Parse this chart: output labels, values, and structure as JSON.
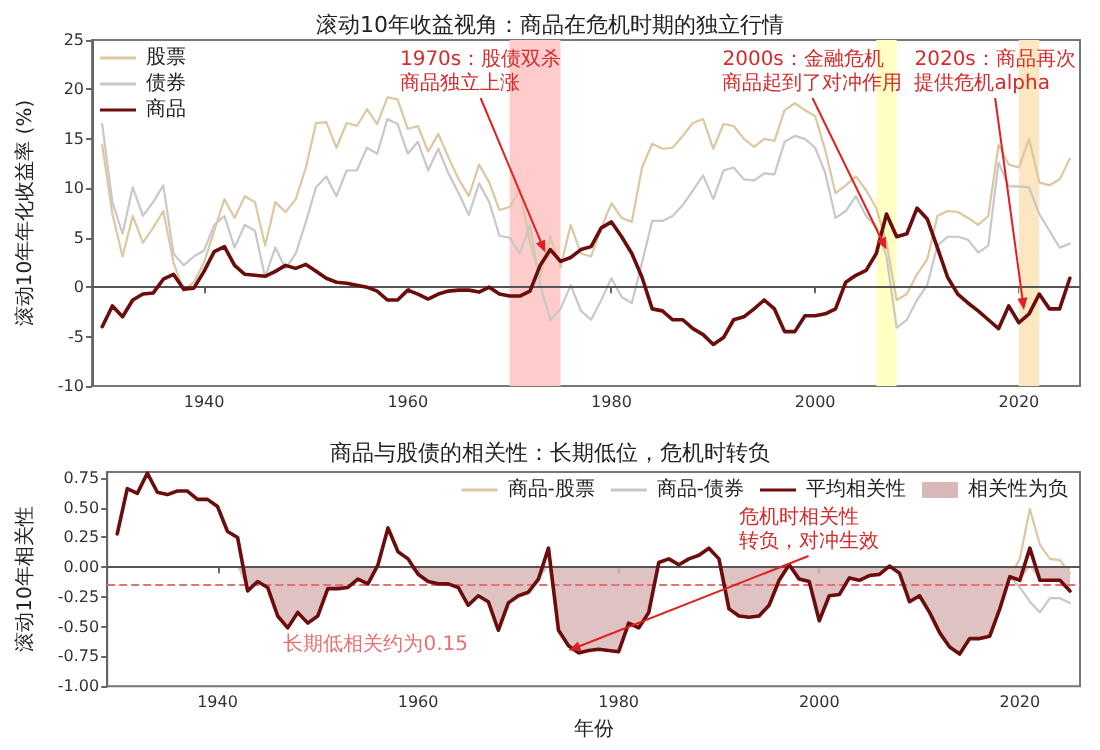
{
  "chart_data": [
    {
      "type": "line",
      "title": "滚动10年收益视角：商品在危机时期的独立行情",
      "ylabel": "滚动10年年化收益率 (%)",
      "x": [
        1930,
        1931,
        1932,
        1933,
        1934,
        1935,
        1936,
        1937,
        1938,
        1939,
        1940,
        1941,
        1942,
        1943,
        1944,
        1945,
        1946,
        1947,
        1948,
        1949,
        1950,
        1951,
        1952,
        1953,
        1954,
        1955,
        1956,
        1957,
        1958,
        1959,
        1960,
        1961,
        1962,
        1963,
        1964,
        1965,
        1966,
        1967,
        1968,
        1969,
        1970,
        1971,
        1972,
        1973,
        1974,
        1975,
        1976,
        1977,
        1978,
        1979,
        1980,
        1981,
        1982,
        1983,
        1984,
        1985,
        1986,
        1987,
        1988,
        1989,
        1990,
        1991,
        1992,
        1993,
        1994,
        1995,
        1996,
        1997,
        1998,
        1999,
        2000,
        2001,
        2002,
        2003,
        2004,
        2005,
        2006,
        2007,
        2008,
        2009,
        2010,
        2011,
        2012,
        2013,
        2014,
        2015,
        2016,
        2017,
        2018,
        2019,
        2020,
        2021,
        2022,
        2023,
        2024,
        2025
      ],
      "xlim": [
        1929,
        2026
      ],
      "xticks": [
        1940,
        1960,
        1980,
        2000,
        2020
      ],
      "ylim": [
        -10,
        25
      ],
      "yticks": [
        -10,
        -5,
        0,
        5,
        10,
        15,
        20,
        25
      ],
      "legend": "top left",
      "marker": "none",
      "series": [
        {
          "name": "股票",
          "type": "line",
          "color": "#dcc7a1",
          "values": [
            14.4,
            7.4,
            3.1,
            7.2,
            4.5,
            6.0,
            7.7,
            2.5,
            -0.4,
            0.5,
            2.5,
            5.7,
            8.9,
            7.0,
            9.2,
            8.6,
            4.2,
            8.6,
            7.6,
            8.9,
            12.1,
            16.6,
            16.7,
            14.1,
            16.6,
            16.3,
            18.0,
            16.5,
            19.2,
            19.0,
            16.0,
            16.3,
            13.7,
            15.5,
            13.1,
            10.9,
            9.2,
            12.4,
            10.6,
            7.8,
            8.1,
            9.8,
            4.5,
            1.0,
            5.1,
            2.0,
            6.3,
            3.4,
            3.1,
            6.0,
            8.5,
            7.0,
            6.6,
            12.1,
            14.5,
            14.0,
            14.1,
            15.3,
            16.6,
            17.0,
            14.0,
            16.5,
            16.3,
            15.0,
            14.2,
            15.0,
            14.8,
            17.9,
            18.6,
            17.9,
            17.3,
            13.8,
            9.5,
            10.3,
            11.2,
            9.8,
            8.0,
            4.5,
            -1.3,
            -0.7,
            1.3,
            2.8,
            7.2,
            7.7,
            7.6,
            7.0,
            6.3,
            7.2,
            14.4,
            12.4,
            12.1,
            15.0,
            10.6,
            10.3,
            10.9,
            13.0
          ]
        },
        {
          "name": "债券",
          "type": "line",
          "color": "#c8c8c8",
          "values": [
            16.5,
            8.6,
            5.4,
            10.1,
            7.2,
            8.6,
            10.3,
            3.4,
            2.2,
            3.1,
            3.7,
            6.3,
            7.2,
            4.0,
            6.3,
            5.7,
            1.0,
            4.0,
            1.9,
            3.4,
            6.6,
            10.1,
            11.2,
            9.2,
            11.8,
            11.8,
            14.1,
            13.5,
            17.0,
            16.5,
            13.5,
            14.7,
            11.8,
            14.0,
            11.5,
            9.5,
            7.3,
            10.5,
            8.6,
            5.2,
            5.0,
            3.4,
            6.3,
            0.2,
            -3.3,
            -2.2,
            0.2,
            -2.4,
            -3.3,
            -1.3,
            0.9,
            -1.0,
            -1.6,
            2.5,
            6.7,
            6.7,
            7.2,
            8.3,
            9.8,
            11.3,
            8.9,
            11.8,
            12.1,
            10.9,
            10.8,
            11.5,
            11.4,
            14.7,
            15.3,
            15.0,
            14.1,
            11.5,
            7.0,
            7.7,
            9.2,
            7.2,
            6.0,
            3.1,
            -4.1,
            -3.3,
            -1.3,
            0.2,
            4.2,
            5.1,
            5.1,
            4.8,
            3.5,
            4.2,
            12.6,
            10.2,
            10.2,
            10.1,
            7.4,
            5.7,
            4.0,
            4.4
          ]
        },
        {
          "name": "商品",
          "type": "line",
          "color": "#6b0d0d",
          "values": [
            -4.0,
            -1.9,
            -3.0,
            -1.3,
            -0.7,
            -0.6,
            0.8,
            1.3,
            -0.2,
            -0.1,
            1.6,
            3.6,
            4.1,
            2.2,
            1.3,
            1.2,
            1.1,
            1.6,
            2.2,
            1.9,
            2.3,
            1.6,
            0.9,
            0.5,
            0.4,
            0.2,
            0.0,
            -0.4,
            -1.3,
            -1.3,
            -0.3,
            -0.7,
            -1.2,
            -0.7,
            -0.4,
            -0.3,
            -0.3,
            -0.5,
            0.0,
            -0.7,
            -0.9,
            -0.9,
            -0.4,
            2.2,
            3.8,
            2.6,
            3.0,
            3.8,
            4.1,
            6.0,
            6.6,
            5.1,
            3.4,
            1.0,
            -2.2,
            -2.4,
            -3.3,
            -3.3,
            -4.2,
            -4.8,
            -5.8,
            -5.1,
            -3.3,
            -3.0,
            -2.2,
            -1.3,
            -2.2,
            -4.5,
            -4.5,
            -2.9,
            -2.9,
            -2.7,
            -2.2,
            0.5,
            1.2,
            1.7,
            3.4,
            7.4,
            5.1,
            5.4,
            8.0,
            6.9,
            4.0,
            1.0,
            -0.7,
            -1.6,
            -2.4,
            -3.3,
            -4.2,
            -1.9,
            -3.6,
            -2.7,
            -0.7,
            -2.2,
            -2.2,
            0.9
          ]
        }
      ],
      "bands": [
        {
          "axis": "x",
          "from": 1970,
          "to": 1975,
          "color": "#ffcccc"
        },
        {
          "axis": "x",
          "from": 2006,
          "to": 2008,
          "color": "#ffffc4"
        },
        {
          "axis": "x",
          "from": 2020,
          "to": 2022,
          "color": "#fde6c2"
        }
      ],
      "ref_lines": [
        {
          "axis": "y",
          "value": 0,
          "color": "#555555"
        }
      ],
      "annotations": [
        {
          "text": "1970s：股债双杀商品独立上涨",
          "x": 1973.5,
          "y": 3.5
        },
        {
          "text": "2000s：金融危机商品起到了对冲作用",
          "x": 2007,
          "y": 3.8
        },
        {
          "text": "2020s：商品再次提供危机alpha",
          "x": 2020.5,
          "y": -2.3
        }
      ]
    },
    {
      "type": "line",
      "title": "商品与股债的相关性：长期低位，危机时转负",
      "ylabel": "滚动10年相关性",
      "xlabel": "年份",
      "x": [
        1930,
        1931,
        1932,
        1933,
        1934,
        1935,
        1936,
        1937,
        1938,
        1939,
        1940,
        1941,
        1942,
        1943,
        1944,
        1945,
        1946,
        1947,
        1948,
        1949,
        1950,
        1951,
        1952,
        1953,
        1954,
        1955,
        1956,
        1957,
        1958,
        1959,
        1960,
        1961,
        1962,
        1963,
        1964,
        1965,
        1966,
        1967,
        1968,
        1969,
        1970,
        1971,
        1972,
        1973,
        1974,
        1975,
        1976,
        1977,
        1978,
        1979,
        1980,
        1981,
        1982,
        1983,
        1984,
        1985,
        1986,
        1987,
        1988,
        1989,
        1990,
        1991,
        1992,
        1993,
        1994,
        1995,
        1996,
        1997,
        1998,
        1999,
        2000,
        2001,
        2002,
        2003,
        2004,
        2005,
        2006,
        2007,
        2008,
        2009,
        2010,
        2011,
        2012,
        2013,
        2014,
        2015,
        2016,
        2017,
        2018,
        2019,
        2020,
        2021,
        2022,
        2023,
        2024,
        2025
      ],
      "xlim": [
        1929,
        2026
      ],
      "xticks": [
        1940,
        1960,
        1980,
        2000,
        2020
      ],
      "ylim": [
        -1,
        0.8
      ],
      "yticks": [
        {
          "value": -1,
          "label": "-1.00"
        },
        -0.75,
        {
          "value": -0.5,
          "label": "-0.50"
        },
        -0.25,
        {
          "value": 0,
          "label": "0.00"
        },
        0.25,
        {
          "value": 0.5,
          "label": "0.50"
        },
        0.75
      ],
      "legend": "top right",
      "marker": "none",
      "series": [
        {
          "name": "商品-股票",
          "type": "line",
          "color": "#dcc7a1",
          "x": [
            2019,
            2020,
            2021,
            2022,
            2023,
            2024,
            2025
          ],
          "values": [
            -0.08,
            0.07,
            0.49,
            0.19,
            0.07,
            0.06,
            -0.05
          ]
        },
        {
          "name": "商品-债券",
          "type": "line",
          "color": "#c8c8c8",
          "x": [
            2019,
            2020,
            2021,
            2022,
            2023,
            2024,
            2025
          ],
          "values": [
            -0.08,
            -0.17,
            -0.29,
            -0.38,
            -0.26,
            -0.26,
            -0.3
          ]
        },
        {
          "name": "平均相关性",
          "type": "line",
          "color": "#6b0d0d",
          "values": [
            0.28,
            0.66,
            0.62,
            0.79,
            0.63,
            0.61,
            0.64,
            0.64,
            0.57,
            0.57,
            0.51,
            0.3,
            0.25,
            -0.2,
            -0.12,
            -0.17,
            -0.41,
            -0.51,
            -0.38,
            -0.47,
            -0.41,
            -0.18,
            -0.18,
            -0.17,
            -0.1,
            -0.14,
            0.02,
            0.33,
            0.13,
            0.07,
            -0.06,
            -0.12,
            -0.14,
            -0.14,
            -0.17,
            -0.32,
            -0.24,
            -0.29,
            -0.53,
            -0.3,
            -0.24,
            -0.21,
            -0.1,
            0.16,
            -0.53,
            -0.66,
            -0.72,
            -0.7,
            -0.69,
            -0.7,
            -0.71,
            -0.47,
            -0.51,
            -0.38,
            0.04,
            0.07,
            0.02,
            0.07,
            0.1,
            0.16,
            0.07,
            -0.35,
            -0.41,
            -0.42,
            -0.41,
            -0.32,
            -0.11,
            0.02,
            -0.1,
            -0.12,
            -0.45,
            -0.24,
            -0.23,
            -0.09,
            -0.11,
            -0.07,
            -0.06,
            0.01,
            -0.05,
            -0.29,
            -0.24,
            -0.38,
            -0.55,
            -0.67,
            -0.73,
            -0.6,
            -0.6,
            -0.58,
            -0.35,
            -0.08,
            -0.11,
            0.16,
            -0.11,
            -0.11,
            -0.11,
            -0.2
          ]
        },
        {
          "name": "相关性为负",
          "type": "area",
          "color": "#d9b8b8",
          "values": [
            0,
            0,
            0,
            0,
            0,
            0,
            0,
            0,
            0,
            0,
            0,
            0,
            0,
            -0.2,
            -0.12,
            -0.17,
            -0.41,
            -0.51,
            -0.38,
            -0.47,
            -0.41,
            -0.18,
            -0.18,
            -0.17,
            -0.1,
            -0.14,
            0,
            0,
            0,
            0,
            -0.06,
            -0.12,
            -0.14,
            -0.14,
            -0.17,
            -0.32,
            -0.24,
            -0.29,
            -0.53,
            -0.3,
            -0.24,
            -0.21,
            -0.1,
            0,
            -0.53,
            -0.66,
            -0.72,
            -0.7,
            -0.69,
            -0.7,
            -0.71,
            -0.47,
            -0.51,
            -0.38,
            0,
            0,
            0,
            0,
            0,
            0,
            0,
            -0.35,
            -0.41,
            -0.42,
            -0.41,
            -0.32,
            -0.11,
            0,
            -0.1,
            -0.12,
            -0.45,
            -0.24,
            -0.23,
            -0.09,
            -0.11,
            -0.07,
            -0.06,
            0,
            -0.05,
            -0.29,
            -0.24,
            -0.38,
            -0.55,
            -0.67,
            -0.73,
            -0.6,
            -0.6,
            -0.58,
            -0.35,
            -0.08,
            -0.11,
            0,
            -0.11,
            -0.11,
            -0.11,
            -0.2
          ]
        }
      ],
      "ref_lines": [
        {
          "axis": "y",
          "value": 0,
          "color": "#555555"
        },
        {
          "axis": "y",
          "value": -0.15,
          "color": "#e87070",
          "line_style": "dashed",
          "label": "长期低相关约为0.15"
        }
      ],
      "annotations": [
        {
          "text": "危机时相关性转负，对冲生效",
          "x": 1975,
          "y": -0.7
        }
      ]
    }
  ]
}
